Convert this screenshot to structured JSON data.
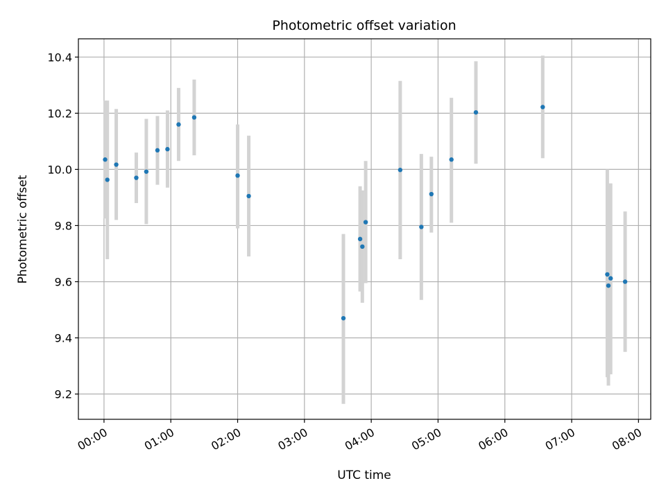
{
  "chart_data": {
    "type": "scatter",
    "title": "Photometric offset variation",
    "xlabel": "UTC time",
    "ylabel": "Photometric offset",
    "x_unit": "UTC time (HH:MM)",
    "xlim": [
      "23:37",
      "08:11"
    ],
    "ylim": [
      9.11,
      10.465
    ],
    "xticks": [
      "00:00",
      "01:00",
      "02:00",
      "03:00",
      "04:00",
      "05:00",
      "06:00",
      "07:00",
      "08:00"
    ],
    "yticks": [
      9.2,
      9.4,
      9.6,
      9.8,
      10.0,
      10.2,
      10.4
    ],
    "ytick_labels": [
      "9.2",
      "9.4",
      "9.6",
      "9.8",
      "10.0",
      "10.2",
      "10.4"
    ],
    "grid": true,
    "series": [
      {
        "marker_color": "#1f77b4",
        "errorbar_color": "#d3d3d3",
        "points": [
          {
            "x": "00:01",
            "y": 10.035,
            "yerr_low": 9.825,
            "yerr_high": 10.245
          },
          {
            "x": "00:03",
            "y": 9.963,
            "yerr_low": 9.68,
            "yerr_high": 10.245
          },
          {
            "x": "00:11",
            "y": 10.017,
            "yerr_low": 9.82,
            "yerr_high": 10.215
          },
          {
            "x": "00:29",
            "y": 9.97,
            "yerr_low": 9.88,
            "yerr_high": 10.06
          },
          {
            "x": "00:38",
            "y": 9.992,
            "yerr_low": 9.805,
            "yerr_high": 10.18
          },
          {
            "x": "00:48",
            "y": 10.068,
            "yerr_low": 9.945,
            "yerr_high": 10.19
          },
          {
            "x": "00:57",
            "y": 10.072,
            "yerr_low": 9.935,
            "yerr_high": 10.21
          },
          {
            "x": "01:07",
            "y": 10.16,
            "yerr_low": 10.03,
            "yerr_high": 10.29
          },
          {
            "x": "01:21",
            "y": 10.185,
            "yerr_low": 10.05,
            "yerr_high": 10.32
          },
          {
            "x": "02:00",
            "y": 9.978,
            "yerr_low": 9.79,
            "yerr_high": 10.16
          },
          {
            "x": "02:10",
            "y": 9.905,
            "yerr_low": 9.69,
            "yerr_high": 10.12
          },
          {
            "x": "03:35",
            "y": 9.47,
            "yerr_low": 9.165,
            "yerr_high": 9.77
          },
          {
            "x": "03:50",
            "y": 9.752,
            "yerr_low": 9.565,
            "yerr_high": 9.94
          },
          {
            "x": "03:52",
            "y": 9.725,
            "yerr_low": 9.525,
            "yerr_high": 9.925
          },
          {
            "x": "03:55",
            "y": 9.812,
            "yerr_low": 9.595,
            "yerr_high": 10.03
          },
          {
            "x": "04:26",
            "y": 9.998,
            "yerr_low": 9.68,
            "yerr_high": 10.315
          },
          {
            "x": "04:45",
            "y": 9.795,
            "yerr_low": 9.535,
            "yerr_high": 10.055
          },
          {
            "x": "04:54",
            "y": 9.912,
            "yerr_low": 9.775,
            "yerr_high": 10.045
          },
          {
            "x": "05:12",
            "y": 10.035,
            "yerr_low": 9.81,
            "yerr_high": 10.255
          },
          {
            "x": "05:34",
            "y": 10.203,
            "yerr_low": 10.02,
            "yerr_high": 10.385
          },
          {
            "x": "06:34",
            "y": 10.222,
            "yerr_low": 10.04,
            "yerr_high": 10.405
          },
          {
            "x": "07:32",
            "y": 9.626,
            "yerr_low": 9.26,
            "yerr_high": 10.0
          },
          {
            "x": "07:33",
            "y": 9.586,
            "yerr_low": 9.23,
            "yerr_high": 9.94
          },
          {
            "x": "07:35",
            "y": 9.612,
            "yerr_low": 9.27,
            "yerr_high": 9.95
          },
          {
            "x": "07:48",
            "y": 9.6,
            "yerr_low": 9.35,
            "yerr_high": 9.85
          }
        ]
      }
    ]
  }
}
